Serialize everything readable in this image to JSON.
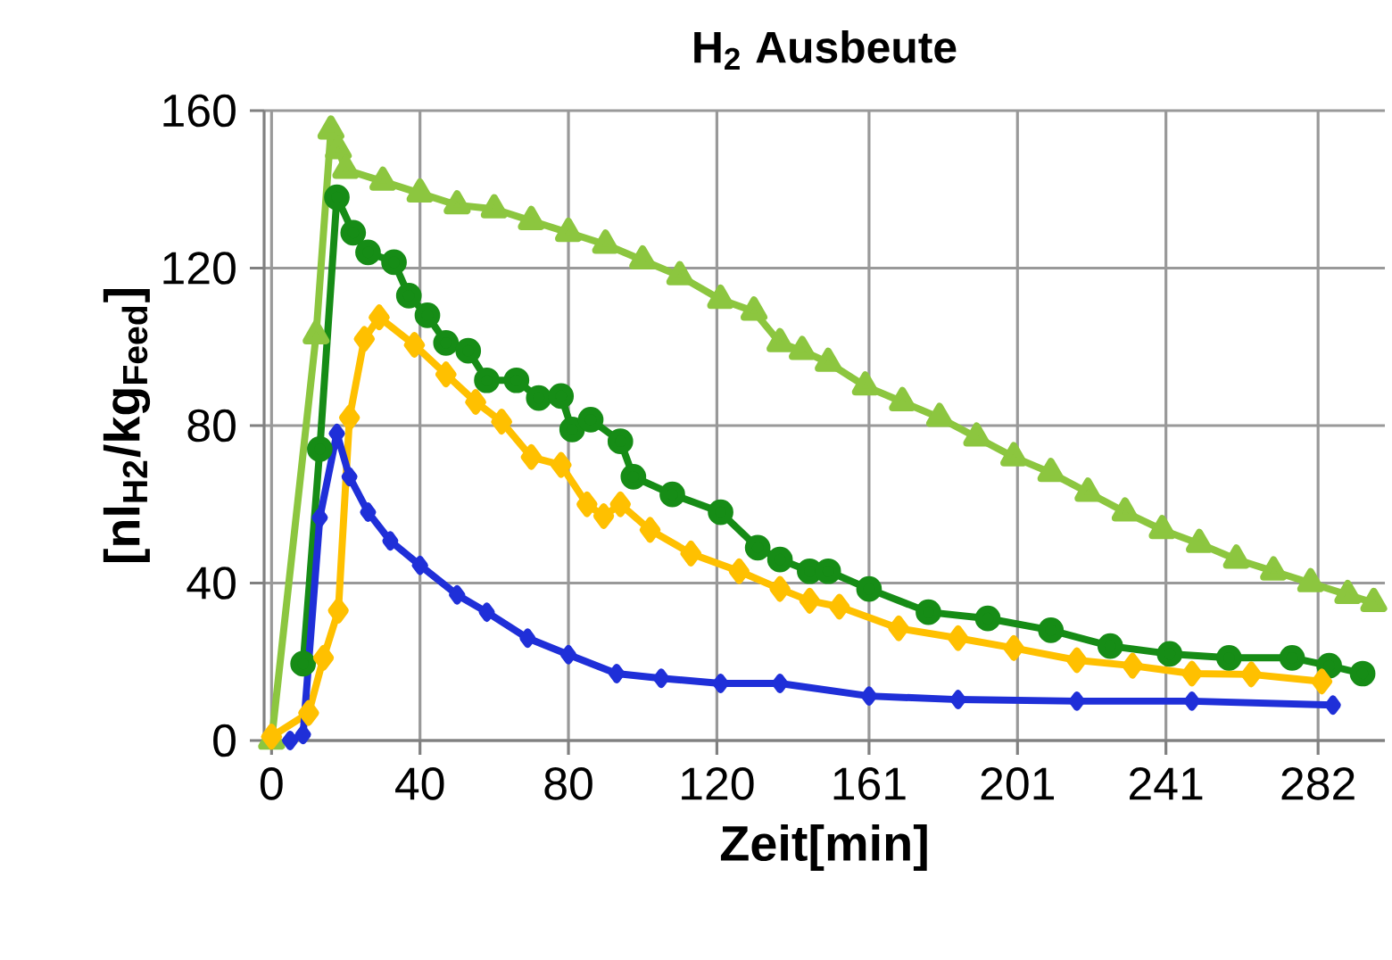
{
  "chart_data": {
    "type": "line",
    "title": "H$_{2}$ Ausbeute",
    "xlabel": "Zeit[min]",
    "ylabel": "[nl$_{H2}$/kg$_{Feed}$]",
    "xlim": [
      -2,
      300
    ],
    "ylim": [
      0,
      160
    ],
    "xticks": [
      0,
      40,
      80,
      120,
      161,
      201,
      241,
      282
    ],
    "yticks": [
      0,
      40,
      80,
      120,
      160
    ],
    "grid": true,
    "line_style": "solid",
    "series": [
      {
        "color": "#8cc63f",
        "marker": "triangle",
        "x": [
          0,
          12,
          16,
          18,
          20,
          30,
          40,
          50,
          60,
          70,
          80,
          90,
          100,
          110,
          121,
          130,
          137,
          143,
          150,
          160,
          170,
          180,
          190,
          200,
          210,
          220,
          230,
          240,
          250,
          260,
          270,
          280,
          290,
          297
        ],
        "values": [
          0,
          103,
          155,
          150,
          145,
          142,
          139,
          136,
          135,
          132,
          129,
          126,
          122,
          118,
          112,
          109,
          101,
          99,
          96,
          90,
          86,
          82,
          77,
          72,
          68,
          63,
          58,
          53.5,
          50,
          46,
          43,
          40,
          37,
          35
        ]
      },
      {
        "color": "#168c16",
        "marker": "circle",
        "x": [
          8.5,
          13,
          17.6,
          22,
          26,
          33,
          37,
          42,
          47,
          53,
          58,
          66,
          72,
          78,
          81,
          86,
          94,
          97.5,
          108,
          121,
          131,
          137,
          145,
          150,
          161,
          177,
          193,
          210,
          226,
          242,
          258,
          275,
          285,
          294
        ],
        "values": [
          19.5,
          74,
          138,
          129,
          124,
          121.5,
          113,
          108,
          101,
          99,
          91.5,
          91.5,
          87,
          87.5,
          79,
          81.5,
          76,
          67,
          62.5,
          58,
          49,
          46,
          43,
          43,
          38.5,
          32.6,
          31,
          28,
          24,
          22,
          21,
          21,
          19,
          17
        ]
      },
      {
        "color": "#ffc000",
        "marker": "diamond",
        "x": [
          0,
          10,
          14,
          18,
          21,
          25,
          29,
          38.5,
          47,
          55,
          62,
          70,
          78,
          85,
          89.5,
          94,
          102,
          113,
          126,
          137,
          145,
          153,
          169,
          185,
          200,
          217,
          232,
          248,
          264,
          283
        ],
        "values": [
          1,
          7,
          21,
          33,
          82,
          102,
          107.5,
          100.5,
          93,
          86,
          81,
          72,
          70,
          60,
          57,
          60,
          53.5,
          47.5,
          43,
          38.5,
          35.5,
          34,
          28.5,
          26,
          23.5,
          20.4,
          19,
          17,
          16.8,
          15
        ]
      },
      {
        "color": "#1f2fd8",
        "marker": "diamond",
        "x": [
          5,
          8.5,
          13,
          17.6,
          21,
          26,
          32,
          40,
          50,
          58,
          69,
          80,
          93,
          105,
          121,
          137,
          161,
          185,
          217,
          248,
          286
        ],
        "values": [
          0,
          1.5,
          56.6,
          78,
          67,
          58,
          50.7,
          44.5,
          37,
          32.6,
          26,
          21.8,
          17,
          15.8,
          14.5,
          14.5,
          11.3,
          10.4,
          10,
          10,
          9
        ]
      }
    ]
  }
}
